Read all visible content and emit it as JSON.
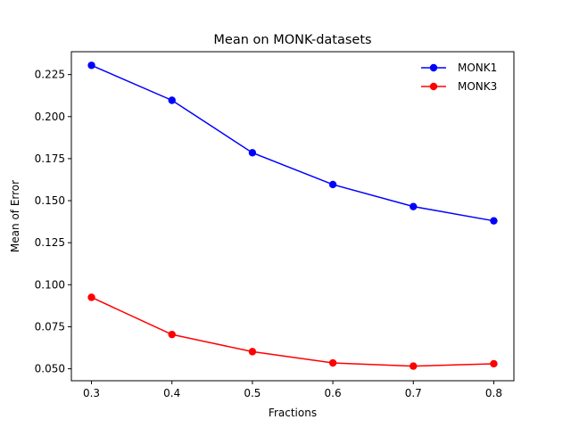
{
  "chart_data": {
    "type": "line",
    "title": "Mean on MONK-datasets",
    "xlabel": "Fractions",
    "ylabel": "Mean of Error",
    "x": [
      0.3,
      0.4,
      0.5,
      0.6,
      0.7,
      0.8
    ],
    "xlim": [
      0.275,
      0.825
    ],
    "ylim": [
      0.0429,
      0.2386
    ],
    "xticks": [
      0.3,
      0.4,
      0.5,
      0.6,
      0.7,
      0.8
    ],
    "xtick_labels": [
      "0.3",
      "0.4",
      "0.5",
      "0.6",
      "0.7",
      "0.8"
    ],
    "yticks": [
      0.05,
      0.075,
      0.1,
      0.125,
      0.15,
      0.175,
      0.2,
      0.225
    ],
    "ytick_labels": [
      "0.050",
      "0.075",
      "0.100",
      "0.125",
      "0.150",
      "0.175",
      "0.200",
      "0.225"
    ],
    "grid": false,
    "legend_position": "top-right",
    "series": [
      {
        "name": "MONK1",
        "color": "#0000ff",
        "values": [
          0.2305,
          0.2097,
          0.1785,
          0.1596,
          0.1465,
          0.138
        ]
      },
      {
        "name": "MONK3",
        "color": "#ff0000",
        "values": [
          0.0925,
          0.0704,
          0.0602,
          0.0535,
          0.0516,
          0.053
        ]
      }
    ]
  }
}
